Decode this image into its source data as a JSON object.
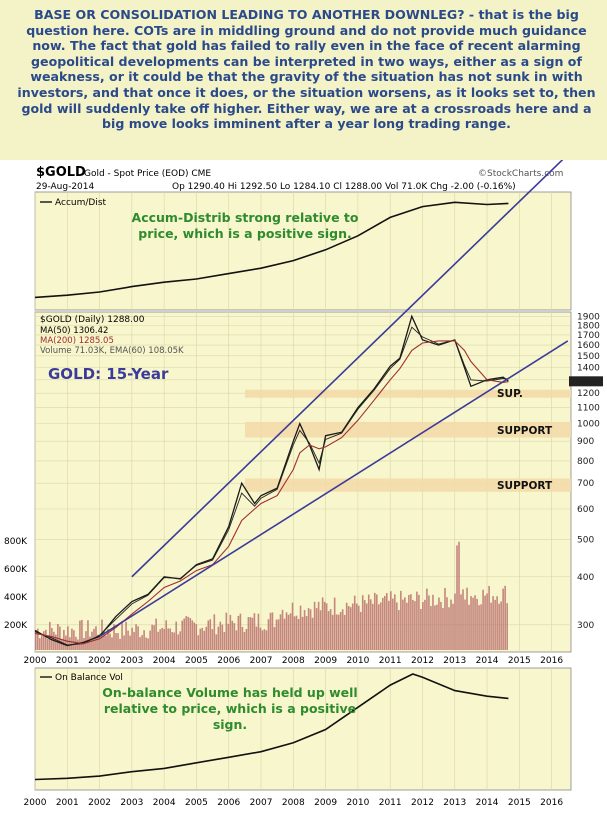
{
  "commentary": "BASE OR CONSOLIDATION LEADING TO ANOTHER DOWNLEG? - that is the big question here. COTs are in middling ground and do not provide much guidance now. The fact that gold has failed to rally even in the face of recent alarming geopolitical developments can be interpreted in two ways, either as a sign of weakness, or it could be that the gravity of the situation has not sunk in with investors, and that once it does, or the situation worsens, as it looks set to, then gold will suddenly take off higher. Either way, we are at a crossroads here and a big move looks imminent after a year long trading range.",
  "header": {
    "symbol": "$GOLD",
    "description": "Gold - Spot Price (EOD) CME",
    "brand": "©StockCharts.com",
    "date": "29-Aug-2014",
    "ohlc": "Op 1290.40  Hi 1292.50  Lo 1284.10  Cl 1288.00  Vol 71.0K  Chg -2.00 (-0.16%)"
  },
  "colors": {
    "panel_bg": "#f8f6cc",
    "price_line": "#1a1a1a",
    "ma50": "#222222",
    "ma200": "#a03030",
    "volume": "#b86a6a",
    "trendline": "#3b3b9a",
    "support_band": "#f3d9a8",
    "annotation_green": "#2e8b2e",
    "annotation_blue": "#3b3b9a"
  },
  "chart_data": [
    {
      "type": "line",
      "panel": "Accum/Dist",
      "legend": "Accum/Dist",
      "annotation": "Accum-Distrib strong relative to price, which is a positive sign.",
      "x": [
        2000,
        2001,
        2002,
        2003,
        2004,
        2005,
        2006,
        2007,
        2008,
        2009,
        2010,
        2011,
        2012,
        2013,
        2014,
        2014.66
      ],
      "relative_values": [
        0.08,
        0.1,
        0.13,
        0.18,
        0.22,
        0.25,
        0.3,
        0.35,
        0.42,
        0.52,
        0.65,
        0.82,
        0.92,
        0.96,
        0.94,
        0.95
      ]
    },
    {
      "type": "line",
      "panel": "price",
      "title": "GOLD: 15-Year",
      "legend": [
        "$GOLD (Daily) 1288.00",
        "MA(50) 1306.42",
        "MA(200) 1285.05",
        "Volume 71.03K, EMA(60) 108.05K"
      ],
      "scale": "log",
      "ylim": [
        255,
        1950
      ],
      "yticks": [
        300,
        400,
        500,
        600,
        700,
        800,
        900,
        1000,
        1100,
        1200,
        1300,
        1400,
        1500,
        1600,
        1700,
        1800,
        1900
      ],
      "volume_ticks": [
        "200K",
        "400K",
        "600K",
        "800K"
      ],
      "x": [
        2000,
        2000.5,
        2001,
        2001.5,
        2002,
        2002.5,
        2003,
        2003.5,
        2004,
        2004.5,
        2005,
        2005.5,
        2006,
        2006.4,
        2006.8,
        2007,
        2007.5,
        2008,
        2008.2,
        2008.5,
        2008.8,
        2009,
        2009.5,
        2010,
        2010.5,
        2011,
        2011.3,
        2011.67,
        2012,
        2012.5,
        2013,
        2013.3,
        2013.5,
        2014,
        2014.5,
        2014.66
      ],
      "series": [
        {
          "name": "$GOLD",
          "values": [
            290,
            275,
            265,
            270,
            280,
            315,
            345,
            360,
            400,
            395,
            430,
            445,
            540,
            700,
            620,
            650,
            680,
            900,
            1000,
            880,
            760,
            930,
            950,
            1100,
            1230,
            1410,
            1480,
            1900,
            1650,
            1600,
            1650,
            1400,
            1250,
            1300,
            1320,
            1288
          ]
        },
        {
          "name": "MA(50)",
          "values": [
            288,
            278,
            266,
            268,
            282,
            310,
            340,
            358,
            398,
            396,
            428,
            442,
            530,
            660,
            610,
            640,
            675,
            880,
            960,
            890,
            790,
            910,
            945,
            1090,
            1220,
            1390,
            1470,
            1780,
            1680,
            1610,
            1650,
            1420,
            1300,
            1290,
            1310,
            1306
          ]
        },
        {
          "name": "MA(200)",
          "values": [
            285,
            280,
            272,
            268,
            276,
            295,
            320,
            345,
            375,
            390,
            415,
            430,
            480,
            560,
            600,
            620,
            650,
            760,
            840,
            880,
            860,
            870,
            920,
            1020,
            1150,
            1300,
            1390,
            1550,
            1620,
            1640,
            1640,
            1550,
            1450,
            1300,
            1280,
            1285
          ]
        }
      ],
      "trendlines": [
        {
          "from": [
            2002.0,
            280
          ],
          "to": [
            2016.5,
            1640
          ]
        },
        {
          "from": [
            2003.0,
            400
          ],
          "to": [
            2016.5,
            5000
          ]
        }
      ],
      "support_zones": [
        {
          "label": "SUP.",
          "low": 1180,
          "high": 1225
        },
        {
          "label": "SUPPORT",
          "low": 920,
          "high": 1010
        },
        {
          "label": "SUPPORT",
          "low": 665,
          "high": 720
        }
      ]
    },
    {
      "type": "line",
      "panel": "On Balance Vol",
      "legend": "On Balance Vol",
      "annotation": "On-balance Volume has held up well relative to price, which is a positive sign.",
      "x": [
        2000,
        2001,
        2002,
        2003,
        2004,
        2005,
        2006,
        2007,
        2008,
        2009,
        2010,
        2011,
        2011.7,
        2012,
        2013,
        2014,
        2014.66
      ],
      "relative_values": [
        0.05,
        0.06,
        0.08,
        0.12,
        0.15,
        0.2,
        0.25,
        0.3,
        0.38,
        0.5,
        0.7,
        0.9,
        1.0,
        0.97,
        0.85,
        0.8,
        0.78
      ]
    }
  ],
  "x_axis": [
    "2000",
    "2001",
    "2002",
    "2003",
    "2004",
    "2005",
    "2006",
    "2007",
    "2008",
    "2009",
    "2010",
    "2011",
    "2012",
    "2013",
    "2014",
    "2015",
    "2016"
  ]
}
